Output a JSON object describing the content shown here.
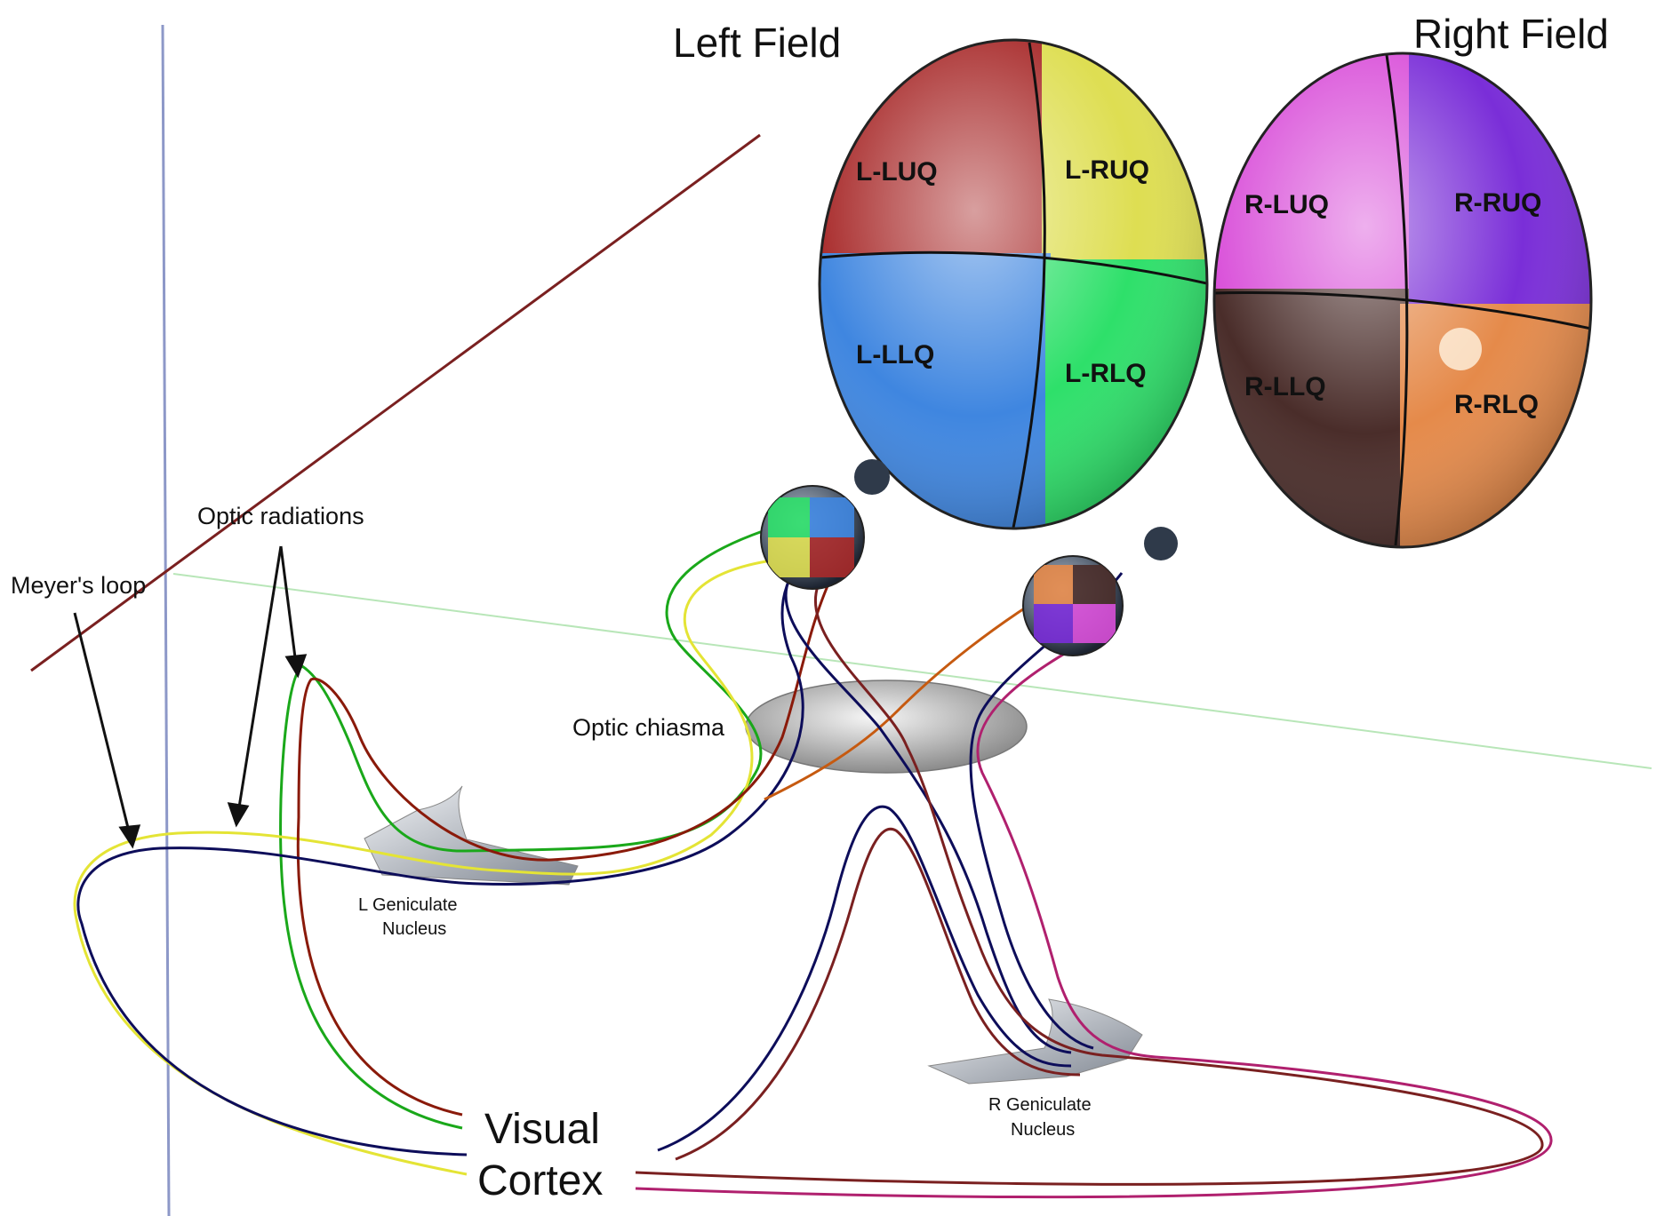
{
  "titles": {
    "left_field": "Left Field",
    "right_field": "Right Field"
  },
  "left_field_quadrants": {
    "luq": "L-LUQ",
    "ruq": "L-RUQ",
    "llq": "L-LLQ",
    "rlq": "L-RLQ"
  },
  "right_field_quadrants": {
    "luq": "R-LUQ",
    "ruq": "R-RUQ",
    "llq": "R-LLQ",
    "rlq": "R-RLQ"
  },
  "labels": {
    "optic_radiations": "Optic radiations",
    "meyers_loop": "Meyer's loop",
    "optic_chiasma": "Optic chiasma",
    "l_geniculate_line1": "L Geniculate",
    "l_geniculate_line2": "Nucleus",
    "r_geniculate_line1": "R Geniculate",
    "r_geniculate_line2": "Nucleus",
    "visual_cortex_line1": "Visual",
    "visual_cortex_line2": "Cortex"
  },
  "colors": {
    "l_luq": "#a82a2a",
    "l_ruq": "#dede52",
    "l_llq": "#3f86e0",
    "l_rlq": "#2ee06a",
    "r_luq": "#d94fd9",
    "r_ruq": "#7a2ed8",
    "r_llq": "#4a2d2a",
    "r_rlq": "#e58a4a",
    "fiber_green": "#1aa81a",
    "fiber_yellow": "#e4e435",
    "fiber_red": "#8a1a0a",
    "fiber_navy": "#0d0d5a",
    "fiber_orange": "#c65a10",
    "fiber_magenta": "#b0206e",
    "axis_blue": "#8d98c8",
    "axis_brown": "#7a2020",
    "axis_green": "#b8e6b8"
  }
}
